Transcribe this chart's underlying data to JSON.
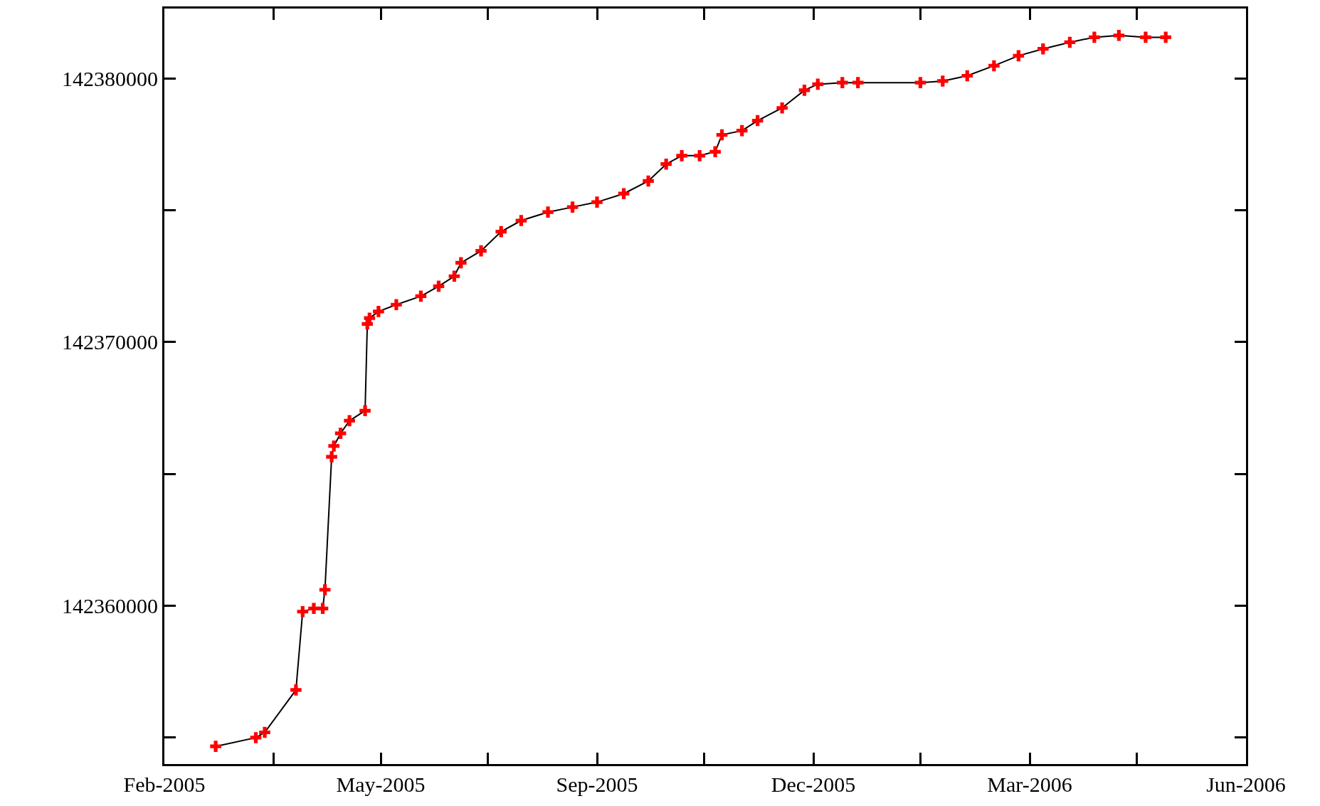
{
  "chart_data": {
    "type": "line",
    "marker": "cross",
    "grid": false,
    "legend": false,
    "x": [
      "2005-03-15",
      "2005-04-02",
      "2005-04-06",
      "2005-04-20",
      "2005-04-23",
      "2005-04-28",
      "2005-05-02",
      "2005-05-03",
      "2005-05-06",
      "2005-05-07",
      "2005-05-10",
      "2005-05-14",
      "2005-05-21",
      "2005-05-22",
      "2005-05-23",
      "2005-05-27",
      "2005-06-04",
      "2005-06-15",
      "2005-06-23",
      "2005-06-30",
      "2005-07-03",
      "2005-07-12",
      "2005-07-21",
      "2005-07-30",
      "2005-08-11",
      "2005-08-22",
      "2005-09-02",
      "2005-09-14",
      "2005-09-25",
      "2005-10-03",
      "2005-10-10",
      "2005-10-18",
      "2005-10-25",
      "2005-10-28",
      "2005-11-06",
      "2005-11-13",
      "2005-11-24",
      "2005-12-04",
      "2005-12-10",
      "2005-12-21",
      "2005-12-28",
      "2006-01-25",
      "2006-02-04",
      "2006-02-15",
      "2006-02-27",
      "2006-03-10",
      "2006-03-21",
      "2006-04-02",
      "2006-04-13",
      "2006-04-24",
      "2006-05-06",
      "2006-05-15"
    ],
    "series": [
      {
        "color": "#ff0000",
        "values": [
          142354670,
          142355000,
          142355200,
          142356810,
          142359780,
          142359900,
          142359900,
          142360610,
          142365650,
          142366060,
          142366540,
          142367020,
          142367400,
          142370690,
          142370910,
          142371160,
          142371420,
          142371740,
          142372120,
          142372500,
          142373010,
          142373460,
          142374190,
          142374610,
          142374930,
          142375120,
          142375310,
          142375630,
          142376110,
          142376750,
          142377070,
          142377070,
          142377220,
          142377860,
          142378020,
          142378400,
          142378880,
          142379550,
          142379780,
          142379840,
          142379840,
          142379840,
          142379900,
          142380100,
          142380480,
          142380860,
          142381120,
          142381370,
          142381560,
          142381630,
          142381560,
          142381560
        ]
      }
    ],
    "xlim": [
      "2005-02-20",
      "2006-06-20"
    ],
    "xticks": [
      {
        "value": "2005-02-20",
        "label": "Feb-2005"
      },
      {
        "value": "2005-04-10",
        "label": null
      },
      {
        "value": "2005-05-28",
        "label": "May-2005"
      },
      {
        "value": "2005-07-15",
        "label": null
      },
      {
        "value": "2005-09-02",
        "label": "Sep-2005"
      },
      {
        "value": "2005-10-20",
        "label": null
      },
      {
        "value": "2005-12-08",
        "label": "Dec-2005"
      },
      {
        "value": "2006-01-25",
        "label": null
      },
      {
        "value": "2006-03-15",
        "label": "Mar-2006"
      },
      {
        "value": "2006-05-02",
        "label": null
      },
      {
        "value": "2006-06-20",
        "label": "Jun-2006"
      }
    ],
    "ylim": [
      142354000,
      142382650
    ],
    "yticks": [
      {
        "value": 142355000,
        "label": null
      },
      142360000,
      {
        "value": 142365000,
        "label": null
      },
      142370000,
      {
        "value": 142375000,
        "label": null
      },
      142380000
    ]
  }
}
